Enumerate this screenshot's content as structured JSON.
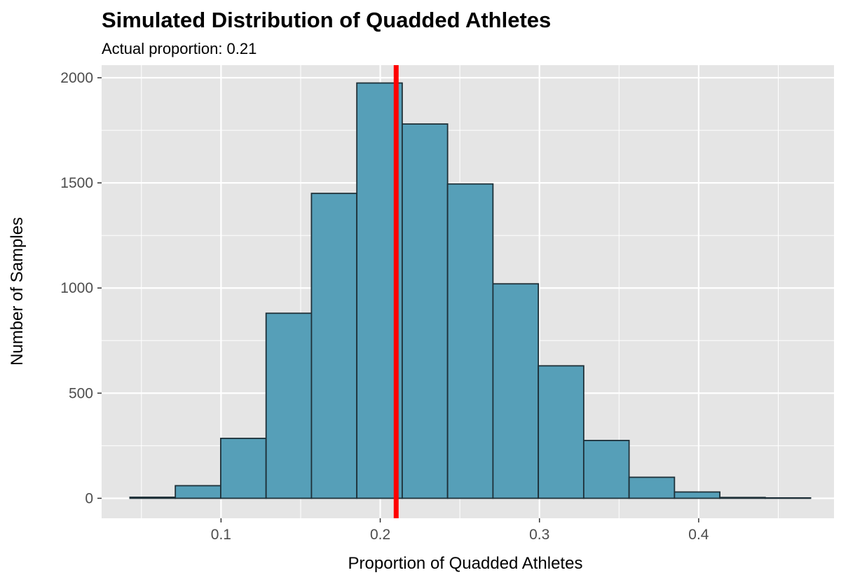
{
  "chart_data": {
    "type": "bar",
    "title": "Simulated Distribution of Quadded Athletes",
    "subtitle": "Actual proportion: 0.21",
    "xlabel": "Proportion of Quadded Athletes",
    "ylabel": "Number of Samples",
    "xlim": [
      0.025,
      0.485
    ],
    "ylim": [
      -95,
      2060
    ],
    "x_ticks": [
      0.1,
      0.2,
      0.3,
      0.4
    ],
    "x_tick_labels": [
      "0.1",
      "0.2",
      "0.3",
      "0.4"
    ],
    "y_ticks": [
      0,
      500,
      1000,
      1500,
      2000
    ],
    "y_tick_labels": [
      "0",
      "500",
      "1000",
      "1500",
      "2000"
    ],
    "bins": [
      {
        "x_start": 0.0428,
        "x_end": 0.0713,
        "count": 5
      },
      {
        "x_start": 0.0713,
        "x_end": 0.0998,
        "count": 60
      },
      {
        "x_start": 0.0998,
        "x_end": 0.1283,
        "count": 285
      },
      {
        "x_start": 0.1283,
        "x_end": 0.1568,
        "count": 880
      },
      {
        "x_start": 0.1568,
        "x_end": 0.1853,
        "count": 1450
      },
      {
        "x_start": 0.1853,
        "x_end": 0.2138,
        "count": 1975
      },
      {
        "x_start": 0.2138,
        "x_end": 0.2423,
        "count": 1780
      },
      {
        "x_start": 0.2423,
        "x_end": 0.2708,
        "count": 1495
      },
      {
        "x_start": 0.2708,
        "x_end": 0.2993,
        "count": 1020
      },
      {
        "x_start": 0.2993,
        "x_end": 0.3278,
        "count": 630
      },
      {
        "x_start": 0.3278,
        "x_end": 0.3563,
        "count": 275
      },
      {
        "x_start": 0.3563,
        "x_end": 0.3848,
        "count": 100
      },
      {
        "x_start": 0.3848,
        "x_end": 0.4133,
        "count": 30
      },
      {
        "x_start": 0.4133,
        "x_end": 0.4418,
        "count": 4
      },
      {
        "x_start": 0.4418,
        "x_end": 0.4703,
        "count": 2
      }
    ],
    "vline": {
      "x": 0.21,
      "color": "#ff0000"
    },
    "bar_fill": "#569fb8",
    "bar_outline": "#1e3038",
    "panel_background": "#e5e5e5",
    "grid_color": "#ffffff",
    "grid": true,
    "legend": "none"
  }
}
